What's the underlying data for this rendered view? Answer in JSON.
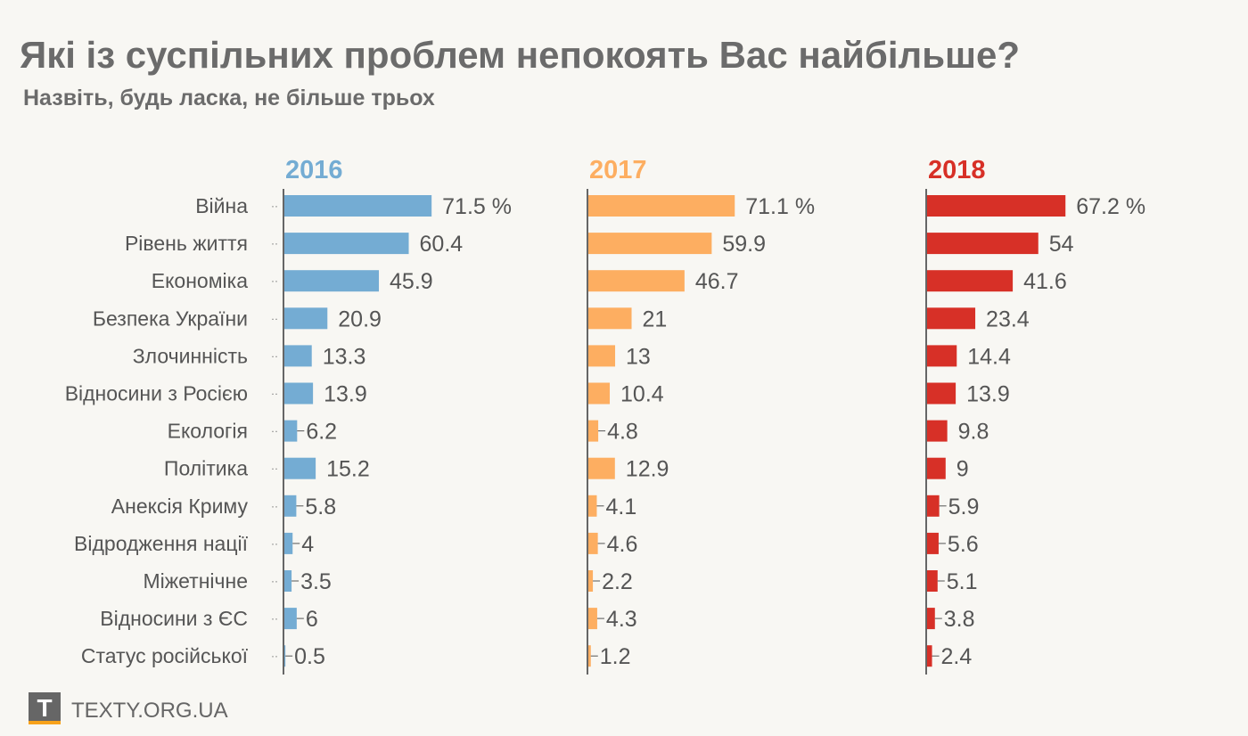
{
  "chart_data": {
    "type": "bar",
    "title": "Які із суспільних проблем непокоять Вас найбільше?",
    "subtitle": "Назвіть, будь ласка, не більше трьох",
    "unit_suffix": " %",
    "categories": [
      "Війна",
      "Рівень життя",
      "Економіка",
      "Безпека України",
      "Злочинність",
      "Відносини з Росією",
      "Екологія",
      "Політика",
      "Анексія Криму",
      "Відродження нації",
      "Міжетнічне",
      "Відносини з ЄС",
      "Статус російської"
    ],
    "series": [
      {
        "name": "2016",
        "color": "#74acd3",
        "values": [
          71.5,
          60.4,
          45.9,
          20.9,
          13.3,
          13.9,
          6.2,
          15.2,
          5.8,
          4,
          3.5,
          6,
          0.5
        ]
      },
      {
        "name": "2017",
        "color": "#fdae61",
        "values": [
          71.1,
          59.9,
          46.7,
          21,
          13,
          10.4,
          4.8,
          12.9,
          4.1,
          4.6,
          2.2,
          4.3,
          1.2
        ]
      },
      {
        "name": "2018",
        "color": "#d73027",
        "values": [
          67.2,
          54,
          41.6,
          23.4,
          14.4,
          13.9,
          9.8,
          9,
          5.9,
          5.6,
          5.1,
          3.8,
          2.4
        ]
      }
    ],
    "xlim": [
      0,
      80
    ]
  },
  "footer": {
    "logo_letter": "T",
    "site": "TEXTY.ORG.UA"
  }
}
